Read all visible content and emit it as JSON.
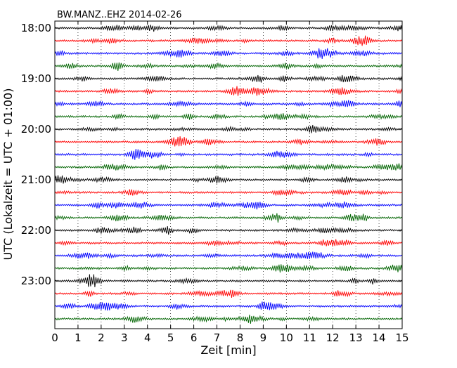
{
  "chart_data": {
    "type": "line",
    "title": "BW.MANZ..EHZ 2014-02-26",
    "xlabel": "Zeit  [min]",
    "ylabel": "UTC (Lokalzeit = UTC + 01:00)",
    "xlim": [
      0,
      15
    ],
    "x_ticks": [
      0,
      1,
      2,
      3,
      4,
      5,
      6,
      7,
      8,
      9,
      10,
      11,
      12,
      13,
      14,
      15
    ],
    "x_tick_labels": [
      "0",
      "1",
      "2",
      "3",
      "4",
      "5",
      "6",
      "7",
      "8",
      "9",
      "10",
      "11",
      "12",
      "13",
      "14",
      "15"
    ],
    "y_tick_labels": [
      "18:00",
      "19:00",
      "20:00",
      "21:00",
      "22:00",
      "23:00"
    ],
    "grid": "vertical dotted at each minute",
    "trace_minutes": 15,
    "traces_per_hour": 4,
    "trace_start_times": [
      "18:00",
      "18:15",
      "18:30",
      "18:45",
      "19:00",
      "19:15",
      "19:30",
      "19:45",
      "20:00",
      "20:15",
      "20:30",
      "20:45",
      "21:00",
      "21:15",
      "21:30",
      "21:45",
      "22:00",
      "22:15",
      "22:30",
      "22:45",
      "23:00",
      "23:15",
      "23:30",
      "23:45"
    ],
    "trace_colors": [
      "#000000",
      "#ff0000",
      "#0000ff",
      "#006400"
    ]
  }
}
